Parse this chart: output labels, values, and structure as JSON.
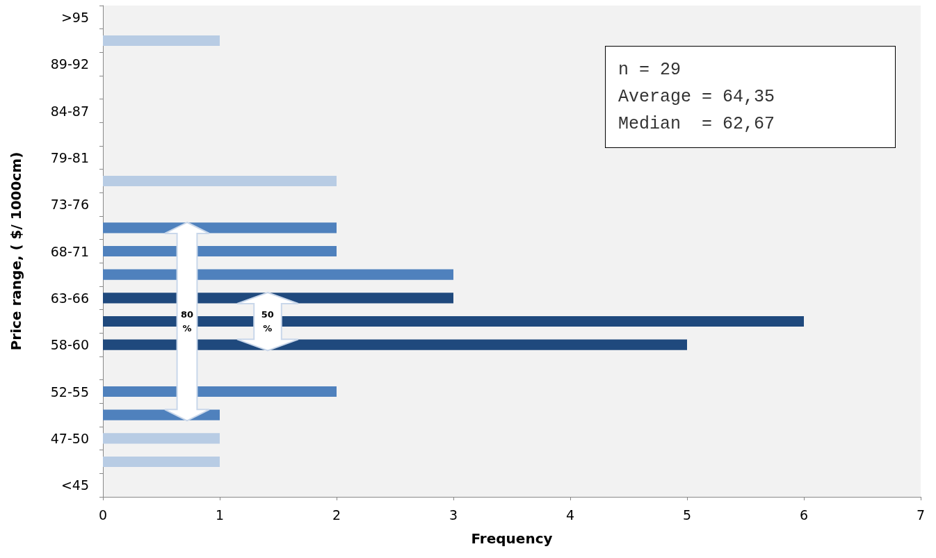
{
  "chart_data": {
    "type": "bar",
    "orientation": "horizontal",
    "xlabel": "Frequency",
    "ylabel": "Price range, ( $/ 1000cm)",
    "categories": [
      ">95",
      null,
      "89-92",
      null,
      "84-87",
      null,
      "79-81",
      null,
      "73-76",
      null,
      "68-71",
      null,
      "63-66",
      null,
      "58-60",
      null,
      "52-55",
      null,
      "47-50",
      null,
      "<45"
    ],
    "values": [
      0,
      1,
      0,
      0,
      0,
      0,
      0,
      2,
      0,
      2,
      2,
      3,
      3,
      6,
      5,
      0,
      2,
      1,
      1,
      1,
      0
    ],
    "colors": [
      "#b8cce4",
      "#b8cce4",
      "#b8cce4",
      "#b8cce4",
      "#b8cce4",
      "#b8cce4",
      "#b8cce4",
      "#b8cce4",
      "#b8cce4",
      "#4f81bd",
      "#4f81bd",
      "#4f81bd",
      "#1f497d",
      "#1f497d",
      "#1f497d",
      "#4f81bd",
      "#4f81bd",
      "#4f81bd",
      "#b8cce4",
      "#b8cce4",
      "#b8cce4"
    ],
    "xlim": [
      0,
      7
    ],
    "xticks": [
      0,
      1,
      2,
      3,
      4,
      5,
      6,
      7
    ],
    "grid": false,
    "annotations": [
      "n = 29",
      "Average = 64,35",
      "Median  = 62,67",
      "80 %",
      "50 %"
    ]
  }
}
